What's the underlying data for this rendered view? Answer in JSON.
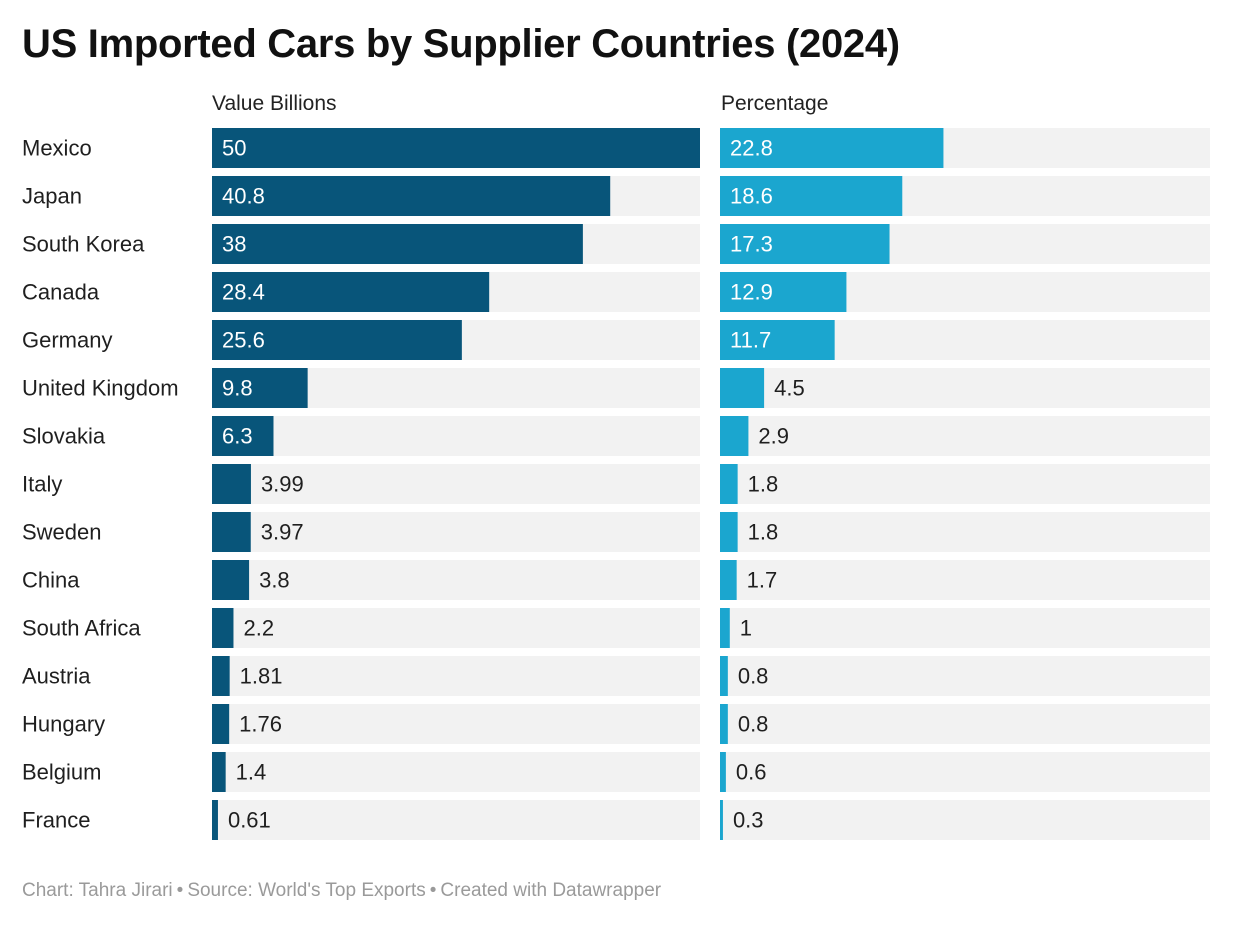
{
  "chart_data": {
    "type": "bar",
    "title": "US Imported Cars by Supplier Countries (2024)",
    "categories": [
      "Mexico",
      "Japan",
      "South Korea",
      "Canada",
      "Germany",
      "United Kingdom",
      "Slovakia",
      "Italy",
      "Sweden",
      "China",
      "South Africa",
      "Austria",
      "Hungary",
      "Belgium",
      "France"
    ],
    "series": [
      {
        "name": "Value Billions",
        "values": [
          50,
          40.8,
          38,
          28.4,
          25.6,
          9.8,
          6.3,
          3.99,
          3.97,
          3.8,
          2.2,
          1.81,
          1.76,
          1.4,
          0.61
        ],
        "labels": [
          "50",
          "40.8",
          "38",
          "28.4",
          "25.6",
          "9.8",
          "6.3",
          "3.99",
          "3.97",
          "3.8",
          "2.2",
          "1.81",
          "1.76",
          "1.4",
          "0.61"
        ],
        "max": 50,
        "color": "#08557a"
      },
      {
        "name": "Percentage",
        "values": [
          22.8,
          18.6,
          17.3,
          12.9,
          11.7,
          4.5,
          2.9,
          1.8,
          1.8,
          1.7,
          1,
          0.8,
          0.8,
          0.6,
          0.3
        ],
        "labels": [
          "22.8",
          "18.6",
          "17.3",
          "12.9",
          "11.7",
          "4.5",
          "2.9",
          "1.8",
          "1.8",
          "1.7",
          "1",
          "0.8",
          "0.8",
          "0.6",
          "0.3"
        ],
        "max": 50,
        "color": "#1ba6cf"
      }
    ],
    "background_color": "#f2f2f2",
    "legend": "none",
    "grid": false
  },
  "footer": {
    "credit": "Chart: Tahra Jirari",
    "source": "Source: World's Top Exports",
    "tool": "Created with Datawrapper",
    "separator": "•"
  }
}
